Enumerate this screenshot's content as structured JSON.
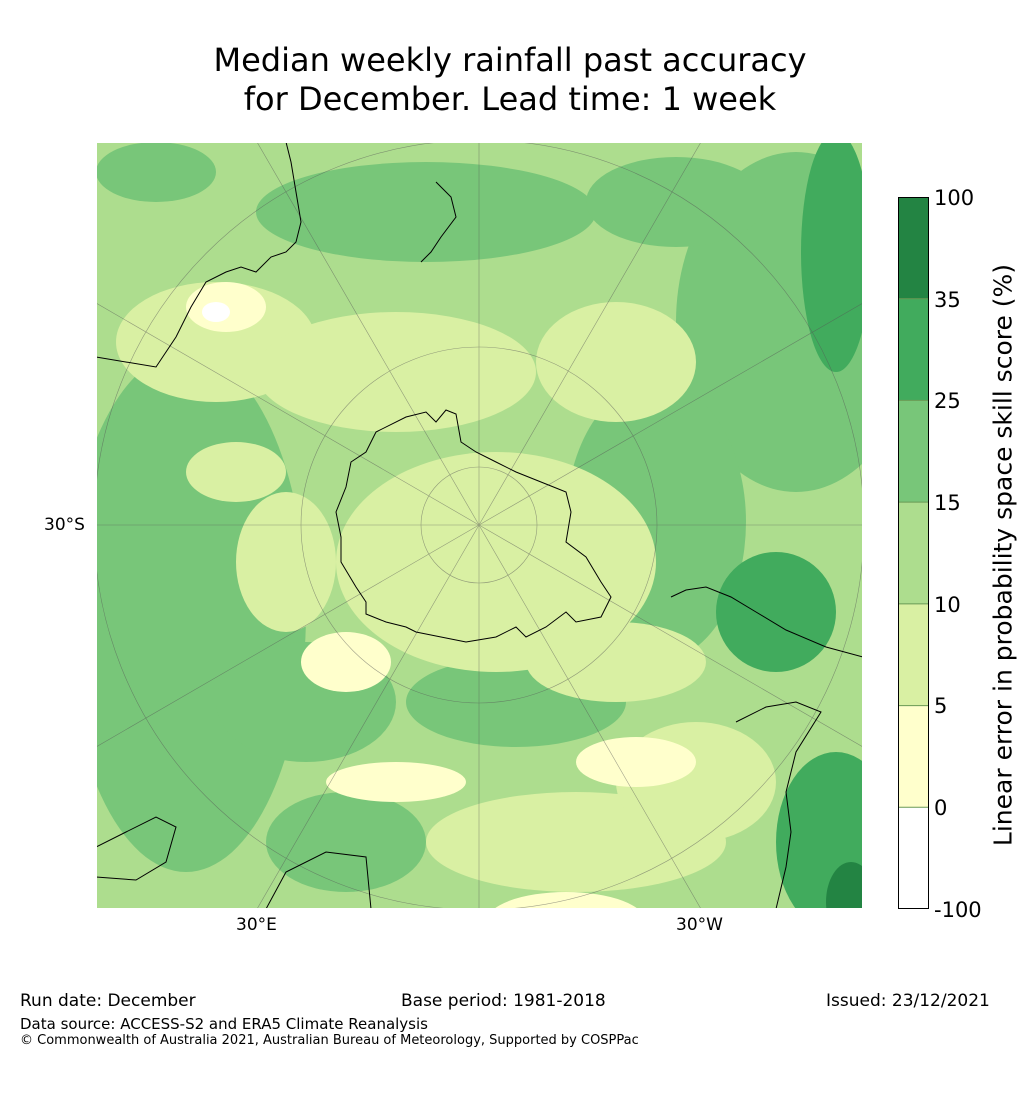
{
  "title": {
    "line1": "Median weekly rainfall past accuracy",
    "line2": "for December. Lead time: 1 week"
  },
  "map": {
    "projection": "south-polar-stereographic",
    "lat_labels": [
      "30°S"
    ],
    "lon_labels": [
      "30°E",
      "30°W"
    ],
    "gridlines": true,
    "land_outline_color": "#000000"
  },
  "colorbar": {
    "label": "Linear error in probability space skill score (%)",
    "ticks": [
      "100",
      "35",
      "25",
      "15",
      "10",
      "5",
      "0",
      "-100"
    ],
    "bins": [
      {
        "from": -100,
        "to": 0,
        "color": "#ffffff"
      },
      {
        "from": 0,
        "to": 5,
        "color": "#ffffcc"
      },
      {
        "from": 5,
        "to": 10,
        "color": "#d9f0a3"
      },
      {
        "from": 10,
        "to": 15,
        "color": "#addd8e"
      },
      {
        "from": 15,
        "to": 25,
        "color": "#78c679"
      },
      {
        "from": 25,
        "to": 35,
        "color": "#41ab5d"
      },
      {
        "from": 35,
        "to": 100,
        "color": "#238443"
      }
    ]
  },
  "footer": {
    "run_date": "Run date: December",
    "base_period": "Base period: 1981-2018",
    "issued": "Issued: 23/12/2021",
    "data_source": "Data source: ACCESS-S2 and ERA5 Climate Reanalysis",
    "copyright": "© Commonwealth of Australia 2021, Australian Bureau of Meteorology, Supported by COSPPac"
  }
}
